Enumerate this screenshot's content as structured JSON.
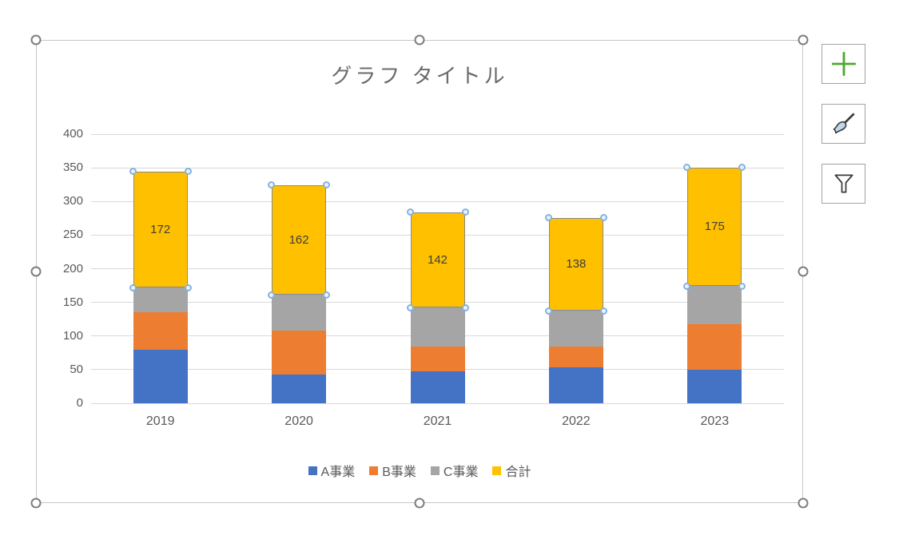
{
  "chart": {
    "title": "グラフ タイトル"
  },
  "chart_data": {
    "type": "bar",
    "stacked": true,
    "title": "グラフ タイトル",
    "xlabel": "",
    "ylabel": "",
    "categories": [
      "2019",
      "2020",
      "2021",
      "2022",
      "2023"
    ],
    "series": [
      {
        "name": "A事業",
        "color": "#4472C4",
        "values": [
          80,
          43,
          47,
          54,
          50
        ]
      },
      {
        "name": "B事業",
        "color": "#ED7D31",
        "values": [
          55,
          65,
          37,
          30,
          68
        ]
      },
      {
        "name": "C事業",
        "color": "#A5A5A5",
        "values": [
          37,
          54,
          58,
          54,
          57
        ]
      },
      {
        "name": "合計",
        "color": "#FFC000",
        "values": [
          172,
          162,
          142,
          138,
          175
        ],
        "selected": true,
        "data_labels": [
          "172",
          "162",
          "142",
          "138",
          "175"
        ]
      }
    ],
    "ylim": [
      0,
      400
    ],
    "yticks": [
      0,
      50,
      100,
      150,
      200,
      250,
      300,
      350,
      400
    ],
    "grid": true,
    "legend_position": "bottom",
    "bar_totals_top": [
      344,
      324,
      284,
      276,
      350
    ]
  },
  "selection": {
    "object_selected": true,
    "selected_series": "合計",
    "resize_handles": [
      "top-left",
      "top-center",
      "top-right",
      "middle-left",
      "middle-right",
      "bottom-left",
      "bottom-center",
      "bottom-right"
    ]
  },
  "ui": {
    "side_buttons": [
      {
        "id": "chart-elements-button",
        "icon": "plus-icon"
      },
      {
        "id": "chart-styles-button",
        "icon": "paintbrush-icon"
      },
      {
        "id": "chart-filters-button",
        "icon": "funnel-icon"
      }
    ]
  },
  "colors": {
    "series_a_blue": "#4472C4",
    "series_b_orange": "#ED7D31",
    "series_c_gray": "#A5A5A5",
    "series_total_yellow": "#FFC000",
    "title_text": "#6B6B6B",
    "axis_text": "#595959",
    "gridline": "#D9D9D9",
    "selection_frame": "#C6C6C6",
    "resize_handle_ring": "#7E7E7E",
    "point_handle_ring": "#86B2DC",
    "plus_green": "#4EA72E",
    "brush_blue": "#BDD7EE",
    "icon_stroke": "#3A3A3A"
  }
}
